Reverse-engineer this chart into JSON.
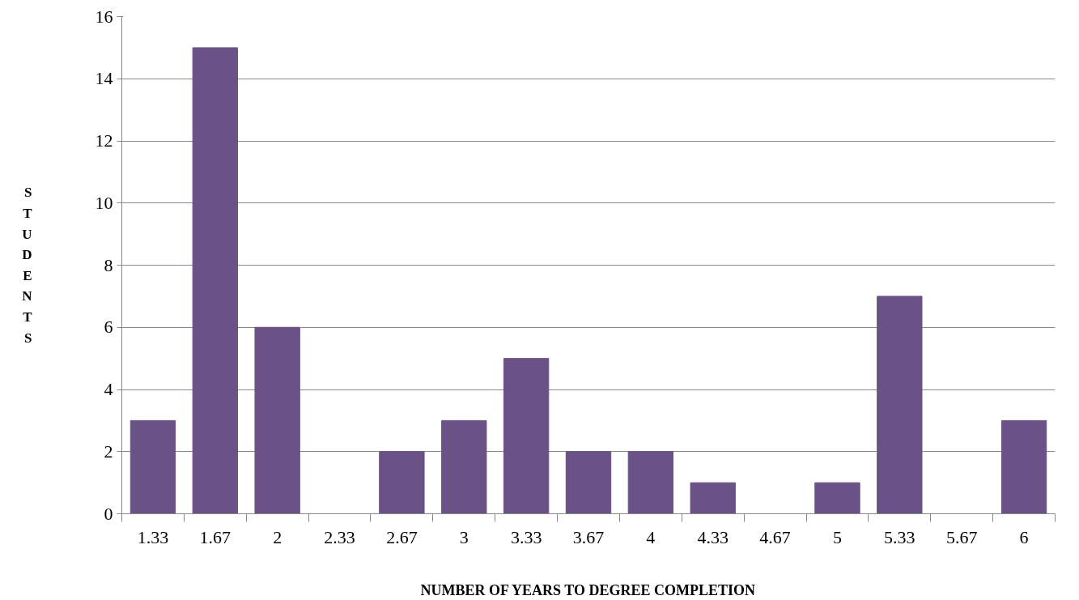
{
  "chart_data": {
    "type": "bar",
    "xlabel": "NUMBER OF YEARS TO DEGREE COMPLETION",
    "ylabel": "STUDENTS",
    "categories": [
      "1.33",
      "1.67",
      "2",
      "2.33",
      "2.67",
      "3",
      "3.33",
      "3.67",
      "4",
      "4.33",
      "4.67",
      "5",
      "5.33",
      "5.67",
      "6"
    ],
    "values": [
      3,
      15,
      6,
      0,
      2,
      3,
      5,
      2,
      2,
      1,
      0,
      1,
      7,
      0,
      3
    ],
    "color": "#6a5286",
    "ylim": [
      0,
      16
    ],
    "yticks": [
      0,
      2,
      4,
      6,
      8,
      10,
      12,
      14,
      16
    ],
    "grid": "y"
  }
}
